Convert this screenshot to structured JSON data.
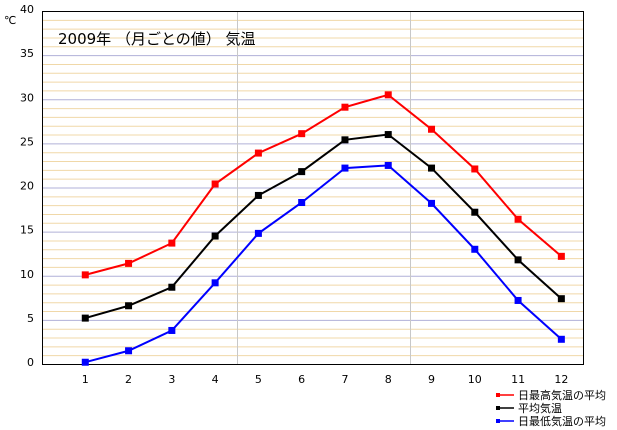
{
  "chart_data": {
    "type": "line",
    "title": "2009年 （月ごとの値） 気温",
    "ylabel": "℃",
    "xlabel": "",
    "categories": [
      "1",
      "2",
      "3",
      "4",
      "5",
      "6",
      "7",
      "8",
      "9",
      "10",
      "11",
      "12"
    ],
    "ylim": [
      0,
      40
    ],
    "yticks": [
      0,
      5,
      10,
      15,
      20,
      25,
      30,
      35,
      40
    ],
    "grid": true,
    "legend_position": "bottom-right",
    "series": [
      {
        "name": "日最高気温の平均",
        "color": "#ff0000",
        "values": [
          10.1,
          11.4,
          13.7,
          20.4,
          23.9,
          26.1,
          29.1,
          30.5,
          26.6,
          22.1,
          16.4,
          12.2
        ]
      },
      {
        "name": "平均気温",
        "color": "#000000",
        "values": [
          5.2,
          6.6,
          8.7,
          14.5,
          19.1,
          21.8,
          25.4,
          26.0,
          22.2,
          17.2,
          11.8,
          7.4
        ]
      },
      {
        "name": "日最低気温の平均",
        "color": "#0000ff",
        "values": [
          0.2,
          1.5,
          3.8,
          9.2,
          14.8,
          18.3,
          22.2,
          22.5,
          18.2,
          13.0,
          7.2,
          2.8
        ]
      }
    ]
  }
}
